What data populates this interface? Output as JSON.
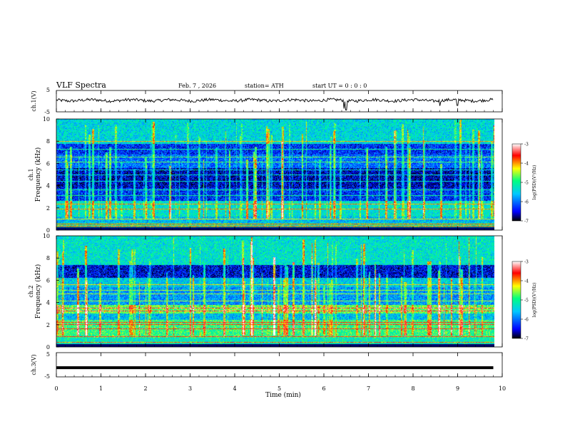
{
  "header": {
    "title": "VLF  Spectra",
    "date": "Feb. 7  , 2026",
    "station": "station= ATH",
    "start_ut": "start  UT  =    0 : 0  : 0"
  },
  "chart_data": [
    {
      "type": "line",
      "name": "ch1-waveform",
      "ylabel": "ch.1(V)",
      "ylim": [
        -5,
        5
      ],
      "y_ticks": [
        "5",
        "-5"
      ],
      "xlim": [
        0,
        9.8
      ],
      "baseline": 0.4,
      "spikes": [
        {
          "x": 6.45,
          "y": -3.5
        },
        {
          "x": 6.5,
          "y": -4.2
        },
        {
          "x": 8.6,
          "y": -2.2
        },
        {
          "x": 9.0,
          "y": -2.0
        }
      ]
    },
    {
      "type": "heatmap",
      "name": "ch1-spectrogram",
      "ylabel": "Frequency  (kHz)",
      "channel_label": "ch.1",
      "ylim": [
        0,
        10
      ],
      "y_ticks": [
        "0",
        "2",
        "4",
        "6",
        "8",
        "10"
      ],
      "xlim": [
        0,
        9.8
      ],
      "bands": [
        {
          "f0": 0.0,
          "f1": 0.6,
          "level": -5.0
        },
        {
          "f0": 0.6,
          "f1": 1.2,
          "level": -5.6
        },
        {
          "f0": 1.2,
          "f1": 2.6,
          "level": -5.3
        },
        {
          "f0": 2.6,
          "f1": 3.8,
          "level": -6.3
        },
        {
          "f0": 3.8,
          "f1": 5.6,
          "level": -6.6
        },
        {
          "f0": 5.6,
          "f1": 6.8,
          "level": -6.0
        },
        {
          "f0": 6.8,
          "f1": 7.8,
          "level": -6.3
        },
        {
          "f0": 7.8,
          "f1": 10.0,
          "level": -5.4
        }
      ],
      "lines_khz": [
        0.3,
        0.5,
        1.0,
        1.9,
        2.3,
        3.1,
        3.6,
        4.4,
        5.0,
        5.4,
        6.1,
        6.6,
        7.3,
        8.0
      ]
    },
    {
      "type": "heatmap",
      "name": "ch2-spectrogram",
      "ylabel": "Frequency  (kHz)",
      "channel_label": "ch.2",
      "ylim": [
        0,
        10
      ],
      "y_ticks": [
        "0",
        "2",
        "4",
        "6",
        "8",
        "10"
      ],
      "xlim": [
        0,
        9.8
      ],
      "bands": [
        {
          "f0": 0.0,
          "f1": 0.8,
          "level": -5.2
        },
        {
          "f0": 0.8,
          "f1": 2.4,
          "level": -4.9
        },
        {
          "f0": 2.4,
          "f1": 3.0,
          "level": -5.6
        },
        {
          "f0": 3.0,
          "f1": 3.8,
          "level": -4.7
        },
        {
          "f0": 3.8,
          "f1": 5.4,
          "level": -5.8
        },
        {
          "f0": 5.4,
          "f1": 6.2,
          "level": -5.5
        },
        {
          "f0": 6.2,
          "f1": 7.4,
          "level": -6.5
        },
        {
          "f0": 7.4,
          "f1": 10.0,
          "level": -5.3
        }
      ],
      "lines_khz": [
        0.4,
        0.9,
        1.6,
        2.0,
        2.2,
        3.2,
        3.5,
        4.1,
        4.8,
        5.1,
        5.6
      ]
    },
    {
      "type": "line",
      "name": "ch3-waveform",
      "ylabel": "ch.3(V)",
      "ylim": [
        -5,
        5
      ],
      "y_ticks": [
        "5",
        "-5"
      ],
      "xlim": [
        0,
        9.8
      ],
      "baseline": -1.2
    }
  ],
  "x_axis": {
    "label": "Time  (min)",
    "ticks": [
      "0",
      "1",
      "2",
      "3",
      "4",
      "5",
      "6",
      "7",
      "8",
      "9",
      "10"
    ]
  },
  "colorbar": {
    "label": "log(PSD)(V²/Hz)",
    "ticks": [
      "-3",
      "-4",
      "-5",
      "-6",
      "-7"
    ],
    "range": [
      -7,
      -3
    ],
    "colors": [
      "#000000",
      "#0000ff",
      "#00c8ff",
      "#00ff80",
      "#ffff00",
      "#ff0000",
      "#ffffff"
    ]
  }
}
